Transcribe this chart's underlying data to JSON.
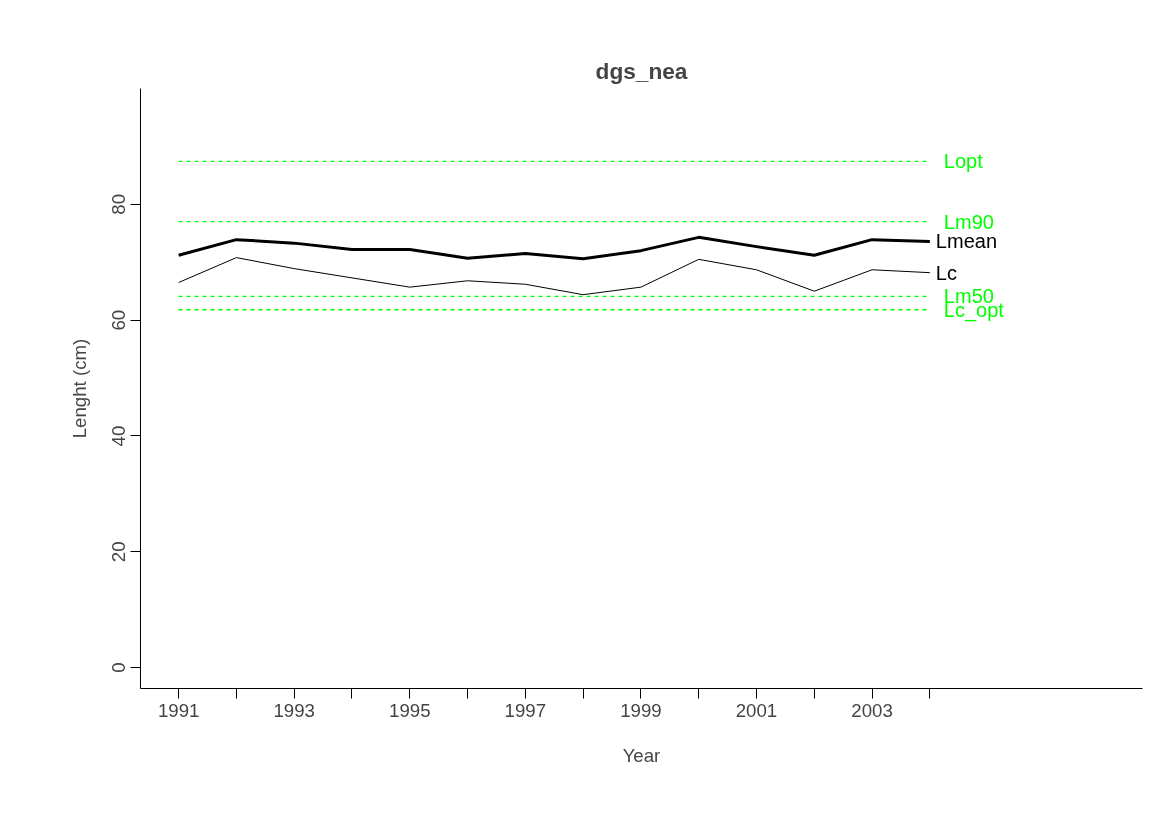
{
  "chart_data": {
    "type": "line",
    "title": "dgs_nea",
    "xlabel": "Year",
    "ylabel": "Lenght (cm)",
    "x": [
      1991,
      1992,
      1993,
      1994,
      1995,
      1996,
      1997,
      1998,
      1999,
      2000,
      2001,
      2002,
      2003,
      2004
    ],
    "series": [
      {
        "name": "Lmean",
        "color": "#000000",
        "values": [
          71.2,
          73.9,
          73.3,
          72.2,
          72.2,
          70.7,
          71.5,
          70.6,
          72.0,
          74.3,
          72.7,
          71.2,
          73.9,
          73.6
        ]
      },
      {
        "name": "Lc",
        "color": "#000000",
        "values": [
          66.5,
          70.8,
          68.9,
          67.3,
          65.7,
          66.8,
          66.2,
          64.4,
          65.7,
          70.5,
          68.7,
          65.0,
          68.7,
          68.2
        ]
      }
    ],
    "ref_lines": [
      {
        "axis": "y",
        "value": 87.4,
        "label": "Lopt",
        "color": "#00ff00",
        "line_style": "dashed"
      },
      {
        "axis": "y",
        "value": 77.0,
        "label": "Lm90",
        "color": "#00ff00",
        "line_style": "dashed"
      },
      {
        "axis": "y",
        "value": 64.1,
        "label": "Lm50",
        "color": "#00ff00",
        "line_style": "dashed"
      },
      {
        "axis": "y",
        "value": 61.8,
        "label": "Lc_opt",
        "color": "#00ff00",
        "line_style": "dashed"
      }
    ],
    "xlim": [
      1990.34,
      2007.68
    ],
    "ylim": [
      -3.6,
      100
    ],
    "xticks": [
      1991,
      {
        "value": 1992,
        "label": null
      },
      1993,
      {
        "value": 1994,
        "label": null
      },
      1995,
      {
        "value": 1996,
        "label": null
      },
      1997,
      {
        "value": 1998,
        "label": null
      },
      1999,
      {
        "value": 2000,
        "label": null
      },
      2001,
      {
        "value": 2002,
        "label": null
      },
      2003,
      {
        "value": 2004,
        "label": null
      }
    ],
    "yticks": [
      0,
      20,
      40,
      60,
      80
    ],
    "grid": false,
    "marker": "none",
    "line_style": "solid"
  }
}
